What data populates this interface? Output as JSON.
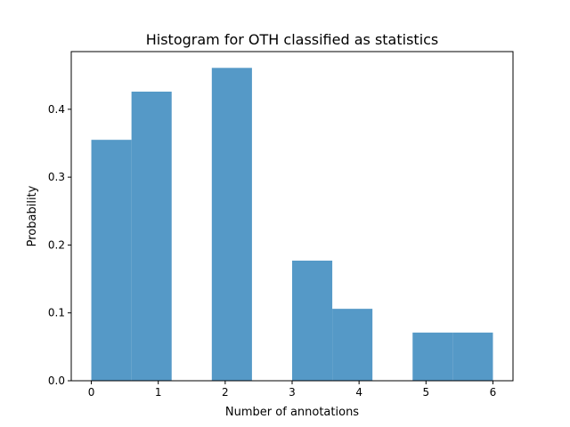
{
  "chart_data": {
    "type": "bar",
    "title": "Histogram for OTH classified as statistics",
    "xlabel": "Number of annotations",
    "ylabel": "Probability",
    "xlim": [
      -0.3,
      6.3
    ],
    "ylim": [
      0,
      0.485
    ],
    "xticks": [
      0,
      1,
      2,
      3,
      4,
      5,
      6
    ],
    "xtick_labels": [
      "0",
      "1",
      "2",
      "3",
      "4",
      "5",
      "6"
    ],
    "yticks": [
      0.0,
      0.1,
      0.2,
      0.3,
      0.4
    ],
    "ytick_labels": [
      "0.0",
      "0.1",
      "0.2",
      "0.3",
      "0.4"
    ],
    "grid": false,
    "bar_color": "#5599c7",
    "bins": [
      {
        "x0": 0.0,
        "x1": 0.6,
        "value": 0.355
      },
      {
        "x0": 0.6,
        "x1": 1.2,
        "value": 0.426
      },
      {
        "x0": 1.2,
        "x1": 1.8,
        "value": 0.0
      },
      {
        "x0": 1.8,
        "x1": 2.4,
        "value": 0.461
      },
      {
        "x0": 2.4,
        "x1": 3.0,
        "value": 0.0
      },
      {
        "x0": 3.0,
        "x1": 3.6,
        "value": 0.177
      },
      {
        "x0": 3.6,
        "x1": 4.2,
        "value": 0.106
      },
      {
        "x0": 4.2,
        "x1": 4.8,
        "value": 0.0
      },
      {
        "x0": 4.8,
        "x1": 5.4,
        "value": 0.071
      },
      {
        "x0": 5.4,
        "x1": 6.0,
        "value": 0.071
      }
    ]
  }
}
